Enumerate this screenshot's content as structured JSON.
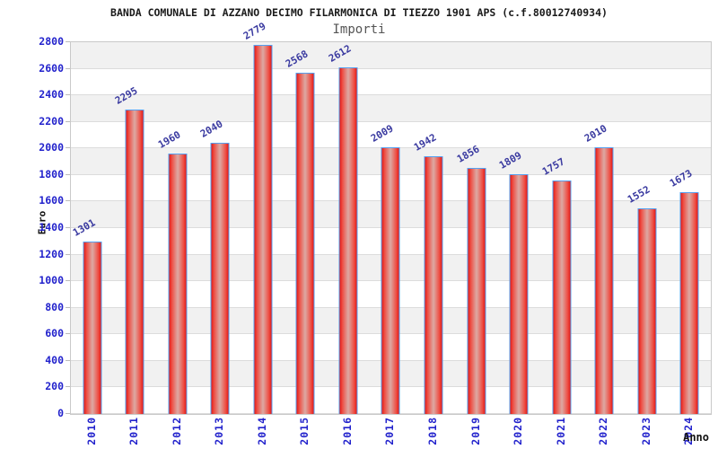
{
  "chart_data": {
    "type": "bar",
    "title": "BANDA COMUNALE DI AZZANO DECIMO FILARMONICA DI TIEZZO 1901 APS (c.f.80012740934)",
    "subtitle": "Importi",
    "categories": [
      "2010",
      "2011",
      "2012",
      "2013",
      "2014",
      "2015",
      "2016",
      "2017",
      "2018",
      "2019",
      "2020",
      "2021",
      "2022",
      "2023",
      "2024"
    ],
    "values": [
      1301,
      2295,
      1960,
      2040,
      2779,
      2568,
      2612,
      2009,
      1942,
      1856,
      1809,
      1757,
      2010,
      1552,
      1673
    ],
    "xlabel": "Anno",
    "ylabel": "Euro",
    "ylim": [
      0,
      2800
    ],
    "ytick_step": 200,
    "grid": true,
    "legend_position": "none",
    "value_labels_rotation_deg": -30,
    "colors": {
      "bar_edge_red": "#e31a17",
      "bar_mid_red": "#ee4f45",
      "bar_center_highlight": "#dda59f",
      "bar_border_blue": "#55a0f0",
      "axis_label_blue": "#2222cc",
      "value_label_indigo": "#3a3aa0",
      "band_gray": "#f1f1f1",
      "band_white": "#ffffff",
      "gridline": "#dcdcdc",
      "plot_border": "#c9c9c9",
      "title_color": "#1a1a1a",
      "subtitle_color": "#555555"
    }
  }
}
